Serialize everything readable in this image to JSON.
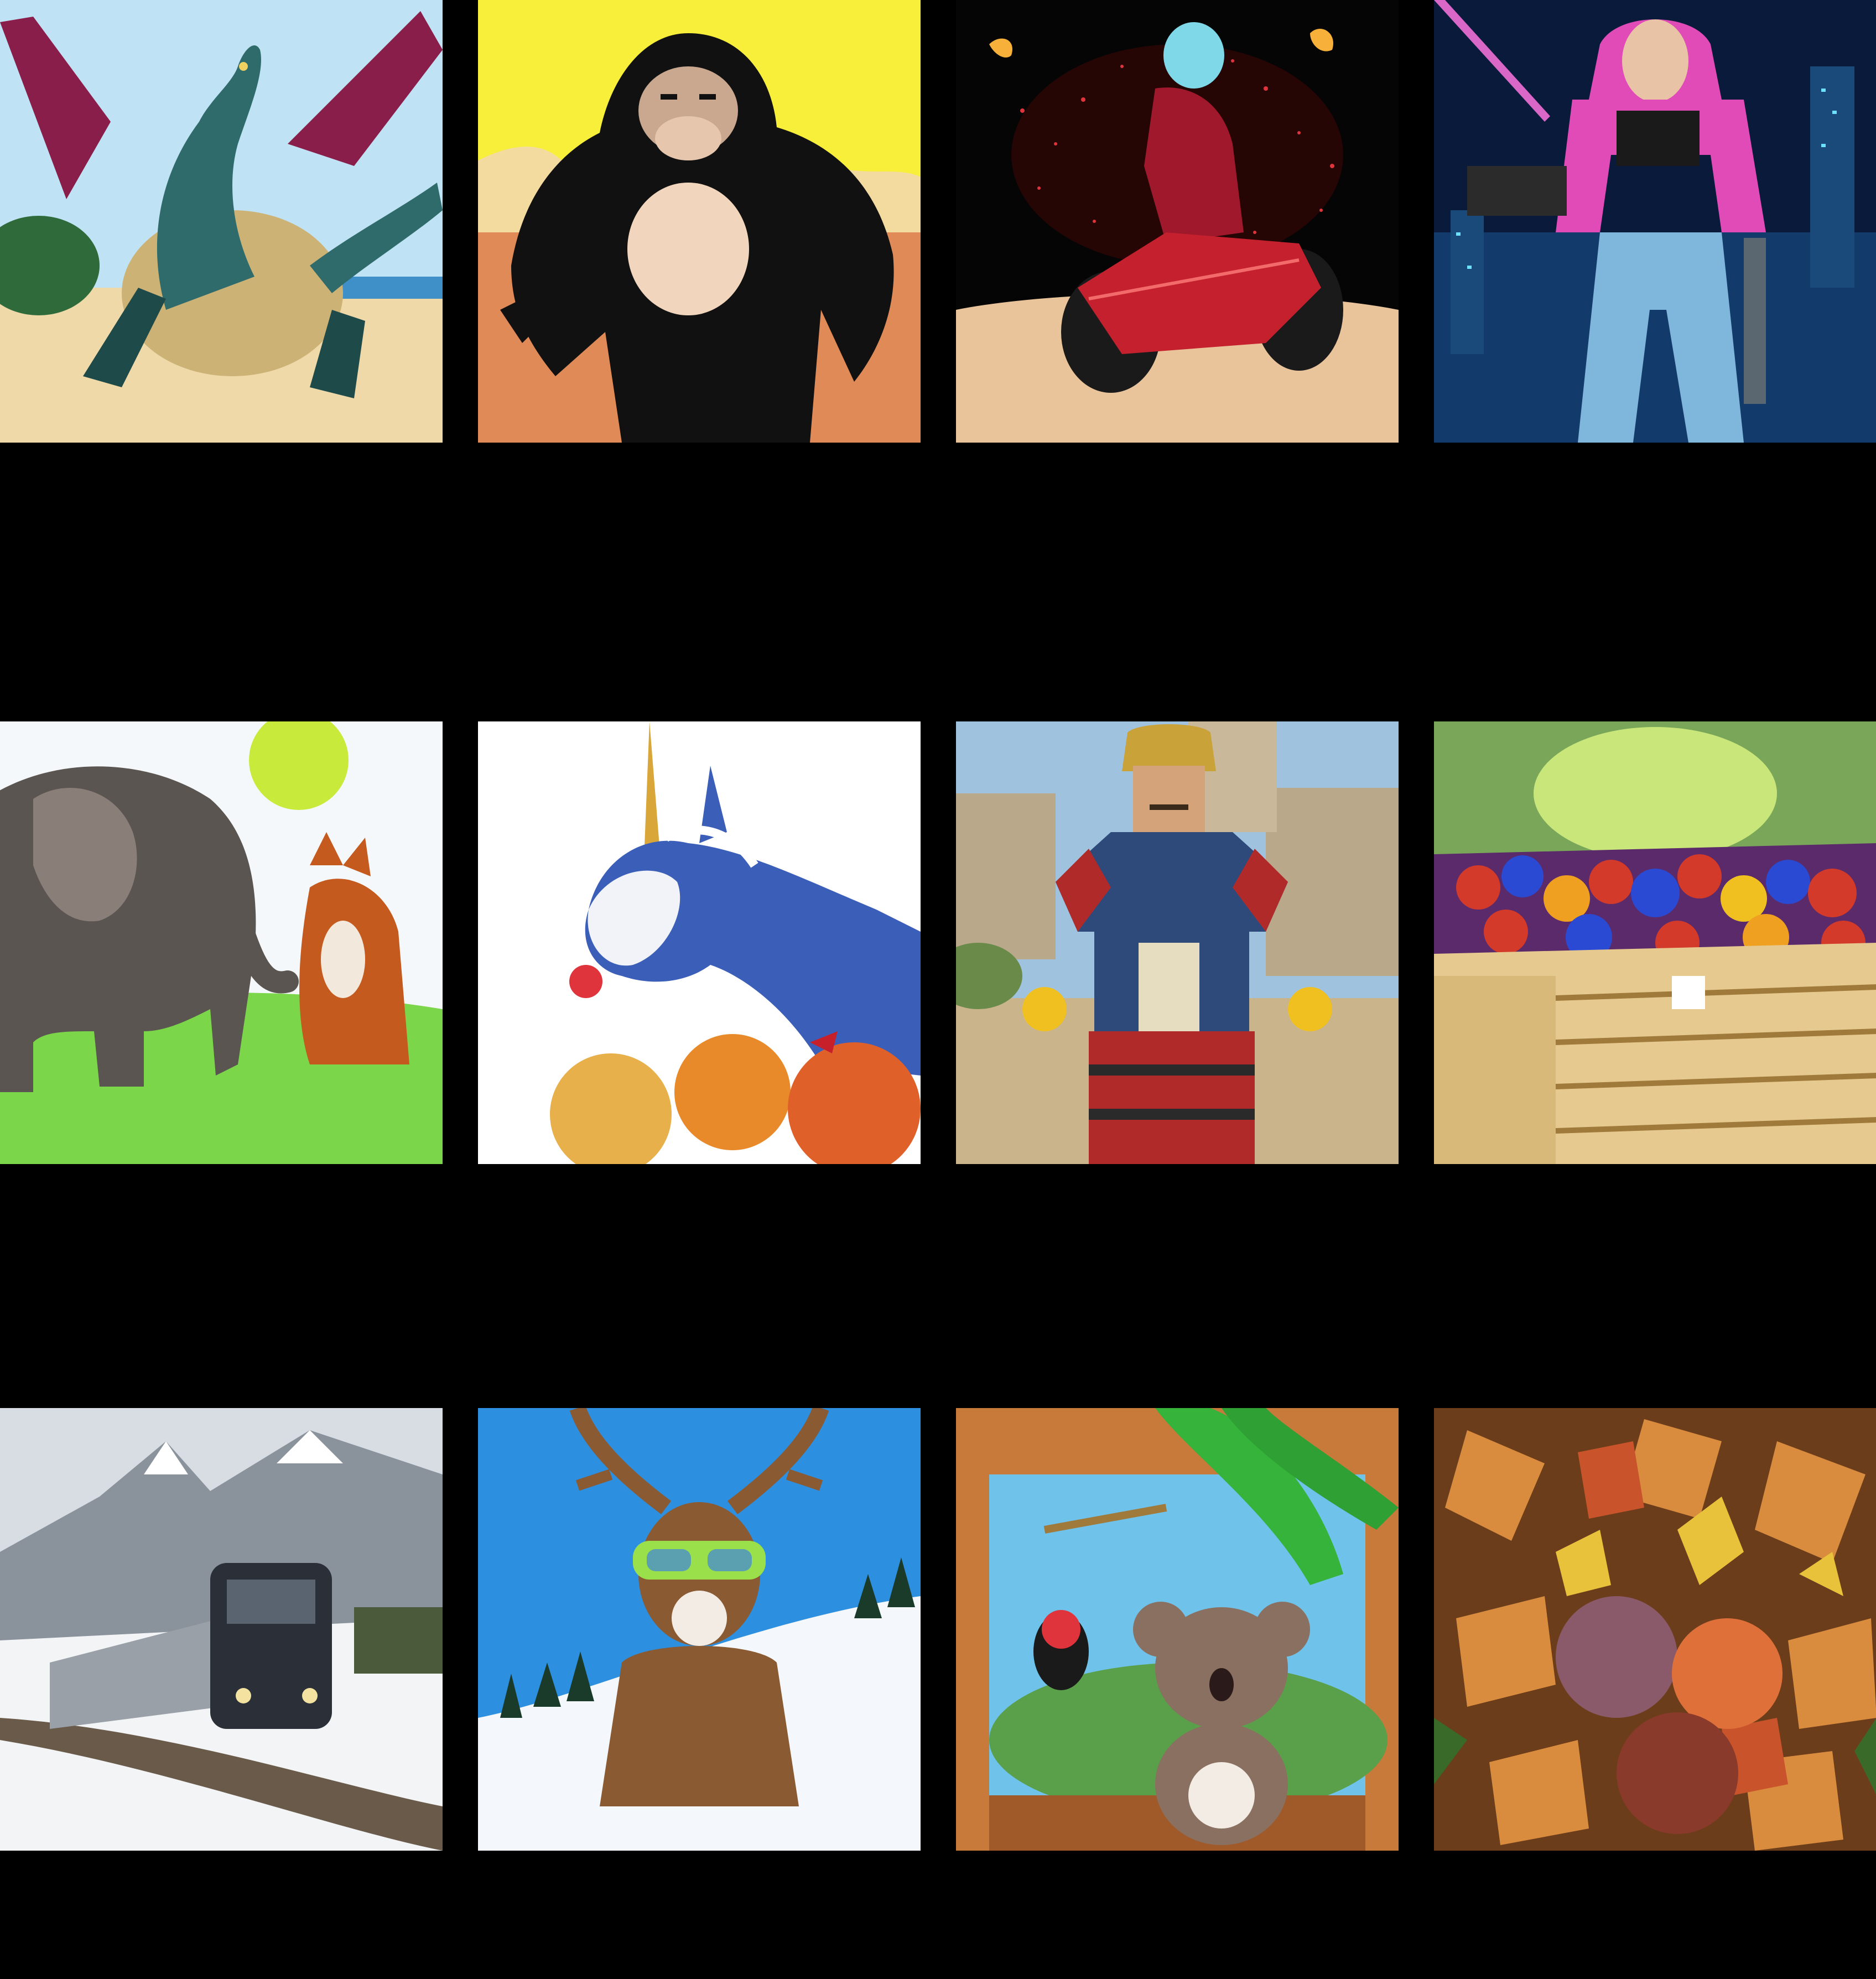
{
  "page": {
    "background": "#000000"
  },
  "tiles": [
    {
      "subject": "dragon-on-beach",
      "palette": {
        "sky": "#bfe3f5",
        "ground": "#efd9a8",
        "accent": "#2f6b6a"
      }
    },
    {
      "subject": "cartoon-gorilla",
      "palette": {
        "sky": "#f7ef3a",
        "ground": "#e08a58",
        "accent": "#111111"
      }
    },
    {
      "subject": "neon-motorcycle-rider",
      "palette": {
        "sky": "#050505",
        "ground": "#e9c39a",
        "accent": "#e0343d"
      }
    },
    {
      "subject": "cyberpunk-woman-with-gun",
      "palette": {
        "sky": "#0a1a3a",
        "ground": "#123a6a",
        "accent": "#e04bb8"
      }
    },
    {
      "subject": "elephant-and-fox",
      "palette": {
        "sky": "#f4f8fb",
        "ground": "#7cd64a",
        "accent": "#5a5550"
      }
    },
    {
      "subject": "unicorn-with-apples",
      "palette": {
        "sky": "#ffffff",
        "ground": "#f6f3ef",
        "accent": "#3b5fb8"
      }
    },
    {
      "subject": "toy-armored-warrior",
      "palette": {
        "sky": "#9fc3df",
        "ground": "#c9b48c",
        "accent": "#2d4a7a"
      }
    },
    {
      "subject": "crate-of-berries",
      "palette": {
        "sky": "#7aa65a",
        "ground": "#e6c98f",
        "accent": "#d33a2a"
      }
    },
    {
      "subject": "train-in-snowy-mountains",
      "palette": {
        "sky": "#d8dde3",
        "ground": "#f2f4f6",
        "accent": "#2a2f38"
      }
    },
    {
      "subject": "deer-with-goggles-in-snow",
      "palette": {
        "sky": "#2d8fe0",
        "ground": "#f4f7fb",
        "accent": "#8a5a32"
      }
    },
    {
      "subject": "koala-at-window",
      "palette": {
        "sky": "#6fc2ea",
        "ground": "#c77a3a",
        "accent": "#35b33a"
      }
    },
    {
      "subject": "autumn-leaves-and-fruit",
      "palette": {
        "sky": "#6b3d1a",
        "ground": "#d98b3e",
        "accent": "#c9542b"
      }
    }
  ]
}
